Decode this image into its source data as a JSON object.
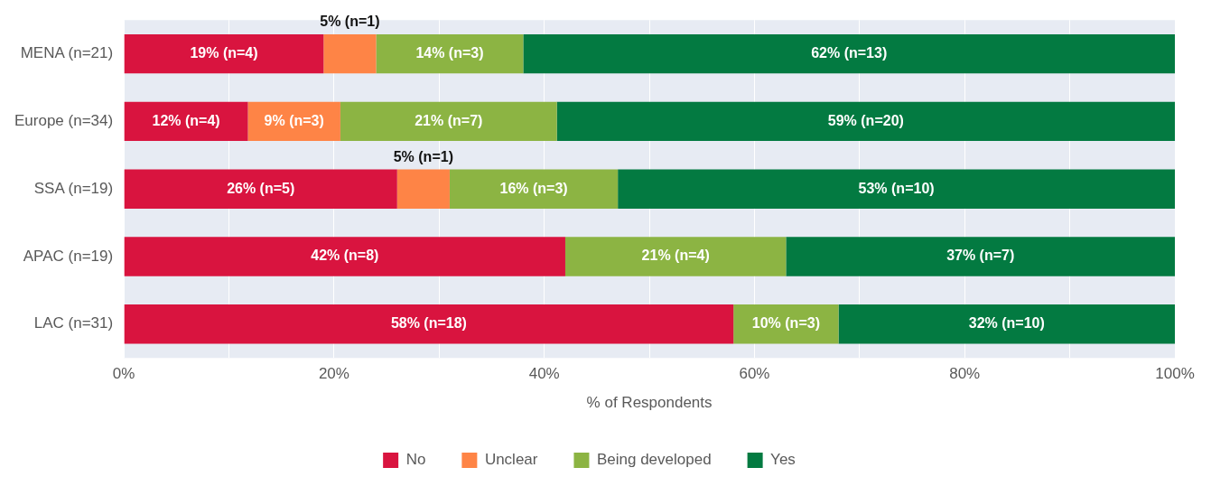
{
  "chart_data": {
    "type": "bar",
    "orientation": "horizontal",
    "stacked": true,
    "categories": [
      "MENA (n=21)",
      "Europe (n=34)",
      "SSA (n=19)",
      "APAC (n=19)",
      "LAC (n=31)"
    ],
    "series": [
      {
        "name": "No",
        "color": "#d9143f",
        "values": [
          19,
          11.8,
          26,
          42,
          58
        ],
        "value_labels": [
          "19% (n=4)",
          "12% (n=4)",
          "26% (n=5)",
          "42% (n=8)",
          "58% (n=18)"
        ]
      },
      {
        "name": "Unclear",
        "color": "#fe8446",
        "values": [
          5,
          8.8,
          5,
          null,
          null
        ],
        "value_labels": [
          "5% (n=1)",
          "9% (n=3)",
          "5% (n=1)",
          null,
          null
        ]
      },
      {
        "name": "Being developed",
        "color": "#8cb443",
        "values": [
          14,
          20.6,
          16,
          21,
          10
        ],
        "value_labels": [
          "14% (n=3)",
          "21% (n=7)",
          "16% (n=3)",
          "21% (n=4)",
          "10% (n=3)"
        ]
      },
      {
        "name": "Yes",
        "color": "#037a41",
        "values": [
          62,
          58.8,
          53,
          37,
          32
        ],
        "value_labels": [
          "62% (n=13)",
          "59% (n=20)",
          "53% (n=10)",
          "37% (n=7)",
          "32% (n=10)"
        ]
      }
    ],
    "xlabel": "% of Respondents",
    "xlim": [
      0,
      100
    ],
    "xticks": [
      {
        "value": 0,
        "label": "0%"
      },
      {
        "value": 10,
        "label": null
      },
      {
        "value": 20,
        "label": "20%"
      },
      {
        "value": 30,
        "label": null
      },
      {
        "value": 40,
        "label": "40%"
      },
      {
        "value": 50,
        "label": null
      },
      {
        "value": 60,
        "label": "60%"
      },
      {
        "value": 70,
        "label": null
      },
      {
        "value": 80,
        "label": "80%"
      },
      {
        "value": 90,
        "label": null
      },
      {
        "value": 100,
        "label": "100%"
      }
    ],
    "grid": "x",
    "legend": "bottom"
  }
}
